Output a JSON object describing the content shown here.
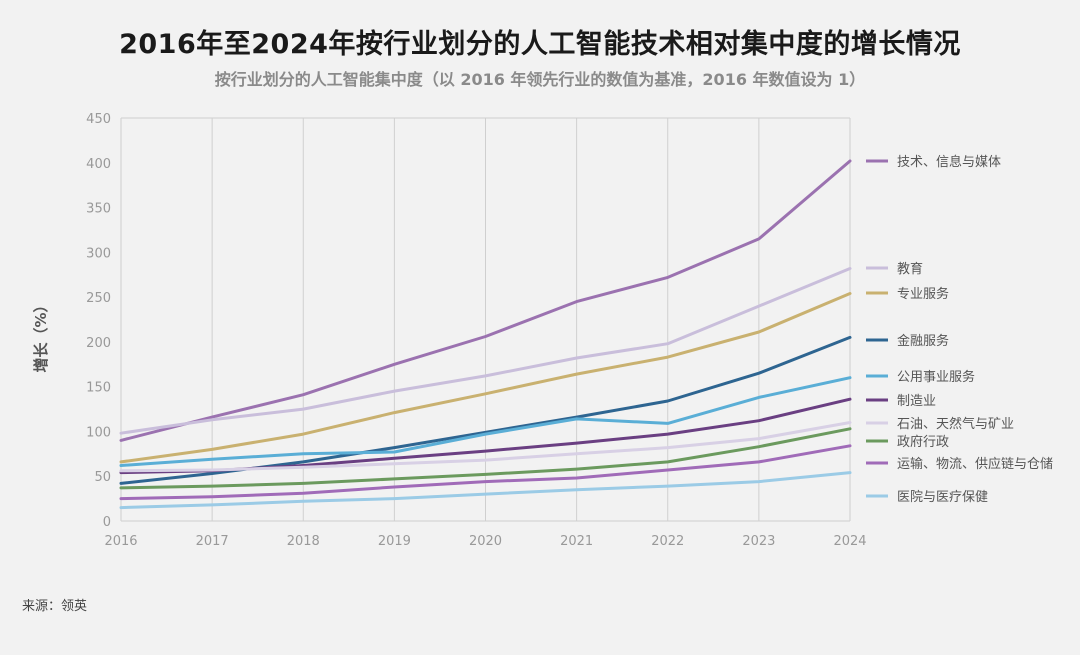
{
  "title": "2016年至2024年按行业划分的人工智能技术相对集中度的增长情况",
  "subtitle": "按行业划分的人工智能集中度（以 2016 年领先行业的数值为基准，2016 年数值设为 1）",
  "source": "来源：领英",
  "chart_data": {
    "type": "line",
    "ylabel": "增长（%）",
    "ylim": [
      0,
      450
    ],
    "yticks": [
      0,
      50,
      100,
      150,
      200,
      250,
      300,
      350,
      400,
      450
    ],
    "x": [
      "2016",
      "2017",
      "2018",
      "2019",
      "2020",
      "2021",
      "2022",
      "2023",
      "2024"
    ],
    "grid": "vertical",
    "legend_position": "right",
    "series": [
      {
        "name": "技术、信息与媒体",
        "color": "#9b72b0",
        "values": [
          90,
          116,
          141,
          175,
          206,
          245,
          272,
          315,
          402
        ]
      },
      {
        "name": "教育",
        "color": "#c9bedb",
        "values": [
          98,
          113,
          125,
          145,
          162,
          182,
          198,
          240,
          282
        ]
      },
      {
        "name": "专业服务",
        "color": "#c9b170",
        "values": [
          66,
          80,
          97,
          121,
          142,
          164,
          183,
          211,
          254
        ]
      },
      {
        "name": "金融服务",
        "color": "#2e6591",
        "values": [
          42,
          53,
          66,
          82,
          99,
          116,
          134,
          165,
          205
        ]
      },
      {
        "name": "公用事业服务",
        "color": "#5aaed6",
        "values": [
          62,
          69,
          75,
          77,
          97,
          114,
          109,
          138,
          160
        ]
      },
      {
        "name": "制造业",
        "color": "#6a3f82",
        "values": [
          54,
          56,
          62,
          70,
          78,
          87,
          97,
          112,
          136
        ]
      },
      {
        "name": "石油、天然气与矿业",
        "color": "#d8d0e5",
        "values": [
          56,
          57,
          60,
          64,
          68,
          75,
          82,
          92,
          110
        ]
      },
      {
        "name": "政府行政",
        "color": "#6b9a5e",
        "values": [
          37,
          39,
          42,
          47,
          52,
          58,
          66,
          83,
          103
        ]
      },
      {
        "name": "运输、物流、供应链与仓储",
        "color": "#a06bb8",
        "values": [
          25,
          27,
          31,
          38,
          44,
          48,
          57,
          66,
          84
        ]
      },
      {
        "name": "医院与医疗保健",
        "color": "#9bcbe6",
        "values": [
          15,
          18,
          22,
          25,
          30,
          35,
          39,
          44,
          54
        ]
      }
    ]
  }
}
